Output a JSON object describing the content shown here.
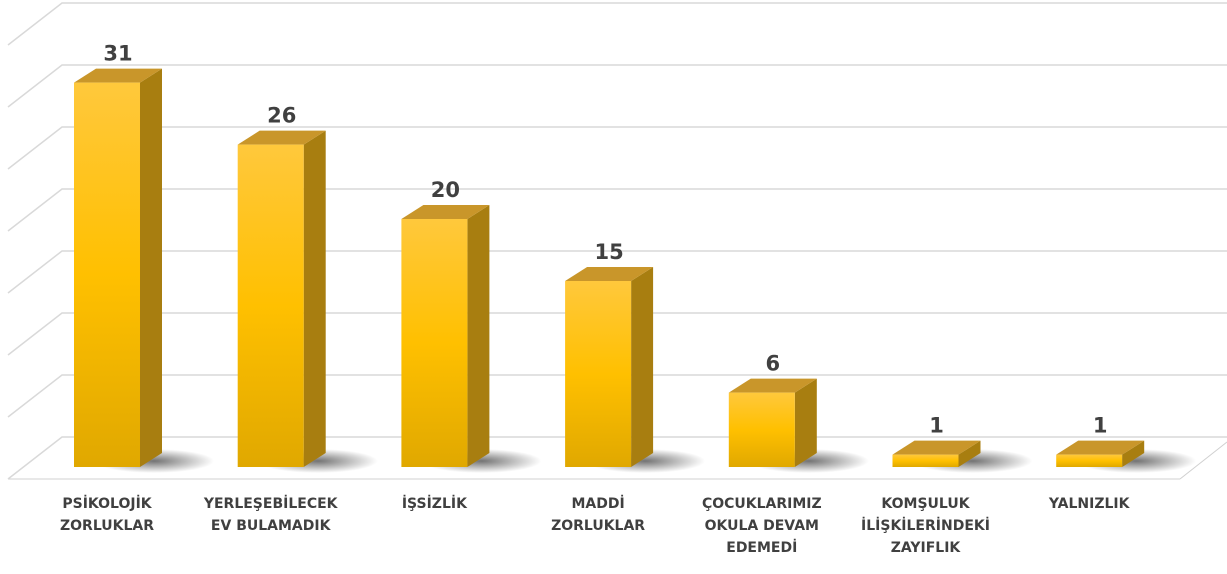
{
  "chart_data": {
    "type": "bar3d",
    "categories": [
      "PSİKOLOJİK ZORLUKLAR",
      "YERLEŞEBİLECEK EV BULAMADIK",
      "İŞSİZLİK",
      "MADDİ ZORLUKLAR",
      "ÇOCUKLARIMIZ OKULA DEVAM EDEMEDİ",
      "KOMŞULUK İLİŞKİLERİNDEKİ ZAYIFLIK",
      "YALNIZLIK"
    ],
    "values": [
      31,
      26,
      20,
      15,
      6,
      1,
      1
    ],
    "color": "#ffc000",
    "ylim": [
      0,
      35
    ],
    "yticks": [
      0,
      5,
      10,
      15,
      20,
      25,
      30,
      35
    ],
    "grid": true
  }
}
